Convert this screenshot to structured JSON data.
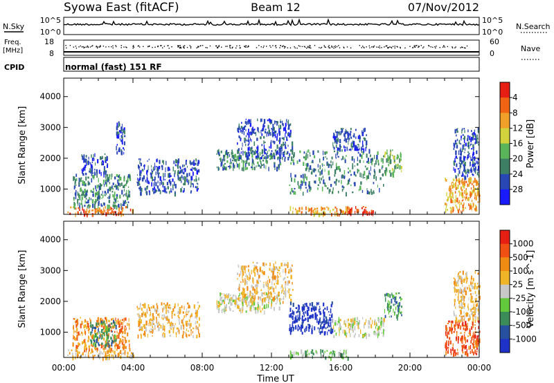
{
  "header": {
    "station": "Syowa East (fitACF)",
    "beam": "Beam 12",
    "date": "07/Nov/2012"
  },
  "noise_panel": {
    "left_label": "N.Sky",
    "right_label": "N.Search",
    "tick_top": "10^5",
    "tick_bottom": "10^0"
  },
  "freq_panel": {
    "left_label_1": "Freq.",
    "left_label_2": "[MHz]",
    "left_tick_top": "18",
    "left_tick_bottom": "8",
    "right_label": "Nave",
    "right_tick_top": "60",
    "right_tick_bottom": "0"
  },
  "cpid": {
    "label": "CPID",
    "value": "normal (fast) 151 RF"
  },
  "chart_data": [
    {
      "type": "heatmap",
      "panel": "power",
      "ylabel": "Slant Range [km]",
      "x_ticks": [
        "00:00",
        "04:00",
        "08:00",
        "12:00",
        "16:00",
        "20:00",
        "00:00"
      ],
      "y_ticks": [
        "1000",
        "2000",
        "3000",
        "4000"
      ],
      "ylim": [
        180,
        4600
      ],
      "xlim_hours": [
        0,
        24
      ],
      "colorbar": {
        "label": "Power [dB]",
        "ticks": [
          "4",
          "8",
          "12",
          "16",
          "20",
          "24",
          "28"
        ],
        "colors": [
          "#1a1aff",
          "#2846b4",
          "#3c7f64",
          "#5ab45a",
          "#d2d23c",
          "#f0a028",
          "#f06414",
          "#e61e14"
        ]
      },
      "regions": [
        {
          "t": [
            0.2,
            4.0
          ],
          "r": [
            200,
            450
          ],
          "level": 6
        },
        {
          "t": [
            0.5,
            3.8
          ],
          "r": [
            450,
            1500
          ],
          "level": 2
        },
        {
          "t": [
            1.0,
            2.5
          ],
          "r": [
            1500,
            2200
          ],
          "level": 1
        },
        {
          "t": [
            3.0,
            3.5
          ],
          "r": [
            2200,
            3200
          ],
          "level": 1
        },
        {
          "t": [
            4.2,
            7.8
          ],
          "r": [
            900,
            2000
          ],
          "level": 1
        },
        {
          "t": [
            8.8,
            12.5
          ],
          "r": [
            1700,
            2300
          ],
          "level": 2
        },
        {
          "t": [
            10.0,
            13.2
          ],
          "r": [
            2000,
            3300
          ],
          "level": 1
        },
        {
          "t": [
            13.0,
            16.5
          ],
          "r": [
            200,
            450
          ],
          "level": 5
        },
        {
          "t": [
            13.0,
            18.5
          ],
          "r": [
            900,
            2300
          ],
          "level": 2
        },
        {
          "t": [
            15.5,
            17.5
          ],
          "r": [
            2300,
            3000
          ],
          "level": 1
        },
        {
          "t": [
            16.2,
            18.0
          ],
          "r": [
            200,
            450
          ],
          "level": 7
        },
        {
          "t": [
            18.5,
            19.5
          ],
          "r": [
            1500,
            2300
          ],
          "level": 3
        },
        {
          "t": [
            22.0,
            24.0
          ],
          "r": [
            300,
            1400
          ],
          "level": 5
        },
        {
          "t": [
            22.5,
            24.0
          ],
          "r": [
            1400,
            3000
          ],
          "level": 1
        }
      ]
    },
    {
      "type": "heatmap",
      "panel": "velocity",
      "ylabel": "Slant Range [km]",
      "xlabel": "Time UT",
      "x_ticks": [
        "00:00",
        "04:00",
        "08:00",
        "12:00",
        "16:00",
        "20:00",
        "00:00"
      ],
      "y_ticks": [
        "1000",
        "2000",
        "3000",
        "4000"
      ],
      "ylim": [
        180,
        4600
      ],
      "xlim_hours": [
        0,
        24
      ],
      "colorbar": {
        "label": "Velocity [m s^-1]",
        "ticks": [
          "1000",
          "500",
          "100",
          "25",
          "-25",
          "-100",
          "-500",
          "-1000"
        ],
        "colors": [
          "#1e32c8",
          "#2850a0",
          "#3c8c5a",
          "#64c83c",
          "#c8c8c8",
          "#f0b428",
          "#f08c14",
          "#f05014",
          "#e61e14"
        ]
      },
      "regions": [
        {
          "t": [
            0.2,
            4.0
          ],
          "r": [
            200,
            450
          ],
          "level": 5
        },
        {
          "t": [
            0.5,
            3.8
          ],
          "r": [
            450,
            1500
          ],
          "level": 6
        },
        {
          "t": [
            1.5,
            3.0
          ],
          "r": [
            600,
            1400
          ],
          "level": 2
        },
        {
          "t": [
            4.2,
            7.8
          ],
          "r": [
            900,
            2000
          ],
          "level": 5
        },
        {
          "t": [
            8.8,
            12.5
          ],
          "r": [
            1700,
            2300
          ],
          "level": 4
        },
        {
          "t": [
            10.0,
            13.2
          ],
          "r": [
            2000,
            3300
          ],
          "level": 5
        },
        {
          "t": [
            13.0,
            16.5
          ],
          "r": [
            200,
            450
          ],
          "level": 3
        },
        {
          "t": [
            13.0,
            15.5
          ],
          "r": [
            1000,
            2000
          ],
          "level": 0
        },
        {
          "t": [
            15.5,
            18.5
          ],
          "r": [
            900,
            1500
          ],
          "level": 4
        },
        {
          "t": [
            18.5,
            19.5
          ],
          "r": [
            1500,
            2300
          ],
          "level": 2
        },
        {
          "t": [
            22.0,
            24.0
          ],
          "r": [
            300,
            1400
          ],
          "level": 7
        },
        {
          "t": [
            22.5,
            24.0
          ],
          "r": [
            1400,
            3000
          ],
          "level": 5
        }
      ]
    }
  ]
}
